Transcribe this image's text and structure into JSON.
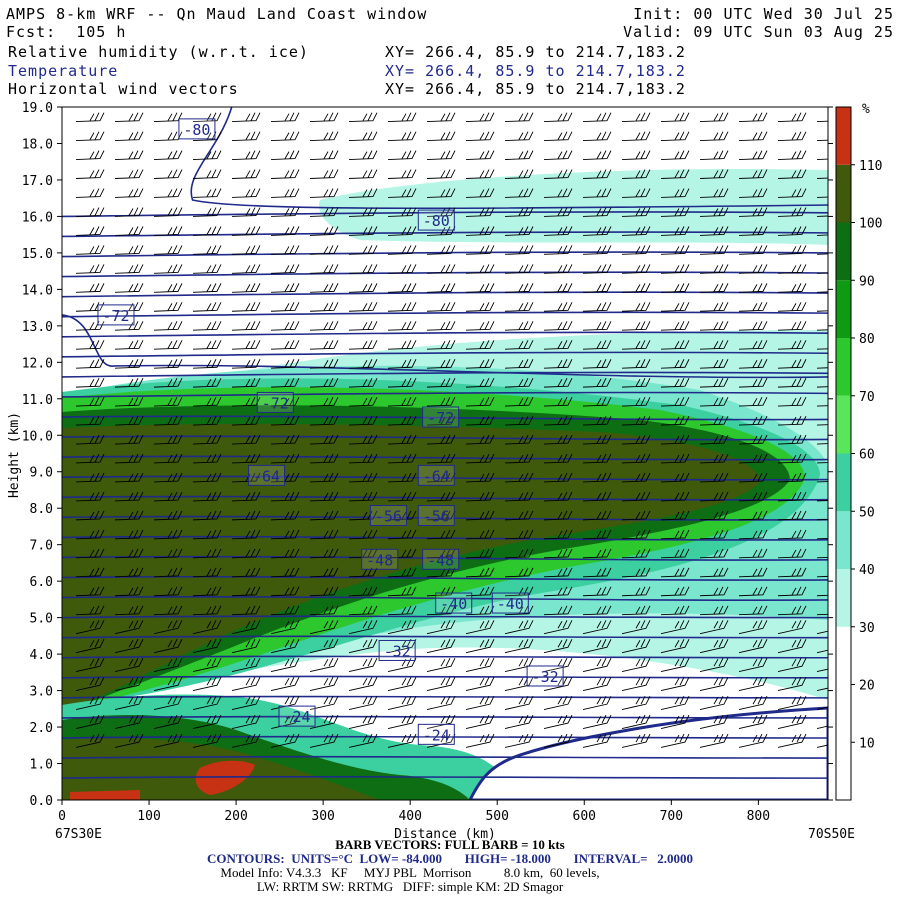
{
  "header": {
    "title": "AMPS 8-km WRF -- Qn Maud Land Coast window",
    "fcst": "Fcst:  105 h",
    "init": "Init: 00 UTC Wed 30 Jul 25",
    "valid": "Valid: 09 UTC Sun 03 Aug 25",
    "fields": [
      {
        "name": "Relative humidity (w.r.t. ice)",
        "xy": "XY= 266.4, 85.9 to 214.7,183.2",
        "color": "#000000"
      },
      {
        "name": "Temperature",
        "xy": "XY= 266.4, 85.9 to 214.7,183.2",
        "color": "#1f2a8a"
      },
      {
        "name": "Horizontal wind vectors",
        "xy": "XY= 266.4, 85.9 to 214.7,183.2",
        "color": "#000000"
      }
    ]
  },
  "axes": {
    "ylabel": "Height (km)",
    "xlabel": "Distance (km)",
    "left_endpoint": "67S30E",
    "right_endpoint": "70S50E",
    "ytick_labels": [
      "0.0",
      "1.0",
      "2.0",
      "3.0",
      "4.0",
      "5.0",
      "6.0",
      "7.0",
      "8.0",
      "9.0",
      "10.0",
      "11.0",
      "12.0",
      "13.0",
      "14.0",
      "15.0",
      "16.0",
      "17.0",
      "18.0",
      "19.0"
    ],
    "xtick_labels": [
      "0",
      "100",
      "200",
      "300",
      "400",
      "500",
      "600",
      "700",
      "800"
    ]
  },
  "colorbar": {
    "unit": "%",
    "levels": [
      10,
      20,
      30,
      40,
      50,
      60,
      70,
      80,
      90,
      100,
      110
    ],
    "labels": [
      "10",
      "20",
      "30",
      "40",
      "50",
      "60",
      "70",
      "80",
      "90",
      "100",
      "110"
    ],
    "colors": [
      "#ffffff",
      "#ffffff",
      "#ffffff",
      "#b4f5e6",
      "#7ae6cd",
      "#3ccfa0",
      "#5ae65a",
      "#2dc82d",
      "#0f9a14",
      "#0e6e14",
      "#3f5a0a",
      "#c83214"
    ]
  },
  "footer": {
    "barb": "BARB VECTORS: FULL BARB = 10 kts",
    "contours": "CONTOURS:  UNITS=°C  LOW= -84.000       HIGH= -18.000       INTERVAL=   2.0000",
    "model1": "Model Info: V4.3.3   KF     MYJ PBL  Morrison          8.0 km,  60 levels,",
    "model2": "LW: RRTM SW: RRTMG   DIFF: simple KM: 2D Smagor"
  },
  "chart_data": {
    "type": "contour cross-section",
    "x_range_km": [
      0,
      880
    ],
    "y_range_km": [
      0,
      19
    ],
    "filled_field": "Relative humidity (w.r.t. ice) %",
    "contour_field": "Temperature °C",
    "contour_labels": [
      {
        "value": "-80",
        "x_km": 155,
        "y_km": 18.4
      },
      {
        "value": "-80",
        "x_km": 430,
        "y_km": 15.9
      },
      {
        "value": "-72",
        "x_km": 62,
        "y_km": 13.3
      },
      {
        "value": "-72",
        "x_km": 245,
        "y_km": 10.9
      },
      {
        "value": "-72",
        "x_km": 435,
        "y_km": 10.5
      },
      {
        "value": "-64",
        "x_km": 235,
        "y_km": 8.9
      },
      {
        "value": "-64",
        "x_km": 430,
        "y_km": 8.9
      },
      {
        "value": "-56",
        "x_km": 375,
        "y_km": 7.8
      },
      {
        "value": "-56",
        "x_km": 430,
        "y_km": 7.8
      },
      {
        "value": "-48",
        "x_km": 365,
        "y_km": 6.6
      },
      {
        "value": "-48",
        "x_km": 435,
        "y_km": 6.6
      },
      {
        "value": "-40",
        "x_km": 450,
        "y_km": 5.4
      },
      {
        "value": "-40",
        "x_km": 515,
        "y_km": 5.4
      },
      {
        "value": "-32",
        "x_km": 385,
        "y_km": 4.1
      },
      {
        "value": "-32",
        "x_km": 555,
        "y_km": 3.4
      },
      {
        "value": "-24",
        "x_km": 270,
        "y_km": 2.3
      },
      {
        "value": "-24",
        "x_km": 430,
        "y_km": 1.8
      }
    ]
  }
}
